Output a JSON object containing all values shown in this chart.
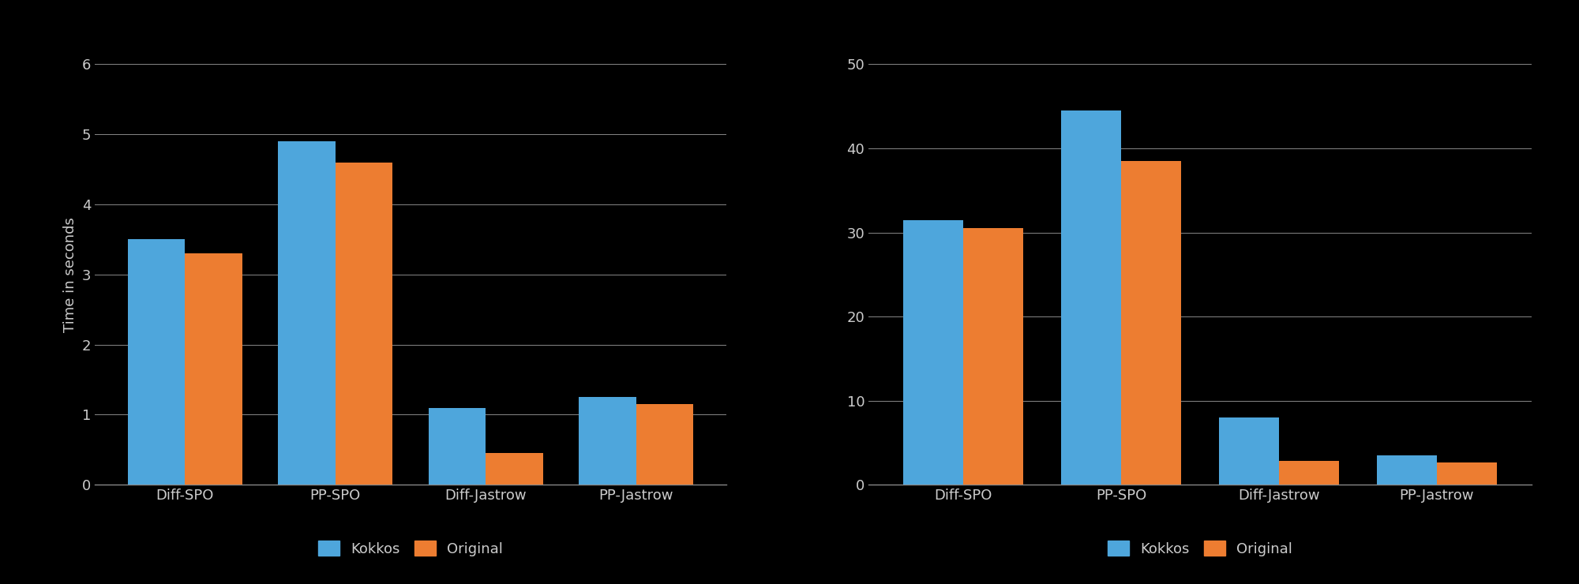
{
  "left_chart": {
    "categories": [
      "Diff-SPO",
      "PP-SPO",
      "Diff-Jastrow",
      "PP-Jastrow"
    ],
    "kokkos": [
      3.5,
      4.9,
      1.1,
      1.25
    ],
    "original": [
      3.3,
      4.6,
      0.45,
      1.15
    ],
    "ylabel": "Time in seconds",
    "ylim": [
      0,
      6
    ],
    "yticks": [
      0,
      1,
      2,
      3,
      4,
      5,
      6
    ]
  },
  "right_chart": {
    "categories": [
      "Diff-SPO",
      "PP-SPO",
      "Diff-Jastrow",
      "PP-Jastrow"
    ],
    "kokkos": [
      31.5,
      44.5,
      8.0,
      3.5
    ],
    "original": [
      30.5,
      38.5,
      2.8,
      2.6
    ],
    "ylim": [
      0,
      50
    ],
    "yticks": [
      0,
      10,
      20,
      30,
      40,
      50
    ]
  },
  "kokkos_color": "#4EA6DC",
  "original_color": "#ED7D31",
  "background_color": "#000000",
  "plot_bg_color": "#000000",
  "text_color": "#CCCCCC",
  "grid_color": "#888888",
  "axis_line_color": "#888888",
  "bar_width": 0.38,
  "legend_labels": [
    "Kokkos",
    "Original"
  ],
  "label_fontsize": 13,
  "tick_fontsize": 13,
  "legend_fontsize": 13
}
